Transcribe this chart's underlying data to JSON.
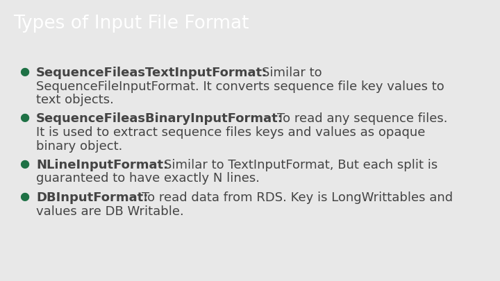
{
  "title": "Types of Input File Format",
  "title_bg_color": "#1e7145",
  "title_text_color": "#ffffff",
  "bg_color": "#e8e8e8",
  "text_color": "#444444",
  "bullet_color": "#1e7145",
  "bullet_points": [
    {
      "bold": "SequenceFileasTextInputFormat:",
      "normal": " Similar to SequenceFileInputFormat. It converts sequence file key values to text objects."
    },
    {
      "bold": "SequenceFileasBinaryInputFormat:",
      "normal": " To read any sequence files. It is used to extract sequence files keys and values as opaque binary object."
    },
    {
      "bold": "NLineInputFormat:",
      "normal": " Similar to TextInputFormat, But each split is guaranteed to have exactly N lines."
    },
    {
      "bold": "DBInputFormat:",
      "normal": " To read data from RDS. Key is LongWrittables and values are DB Writable."
    }
  ],
  "title_fontsize": 19,
  "body_fontsize": 13,
  "bullet_symbol": "●",
  "fig_width": 7.2,
  "fig_height": 4.05,
  "dpi": 100
}
